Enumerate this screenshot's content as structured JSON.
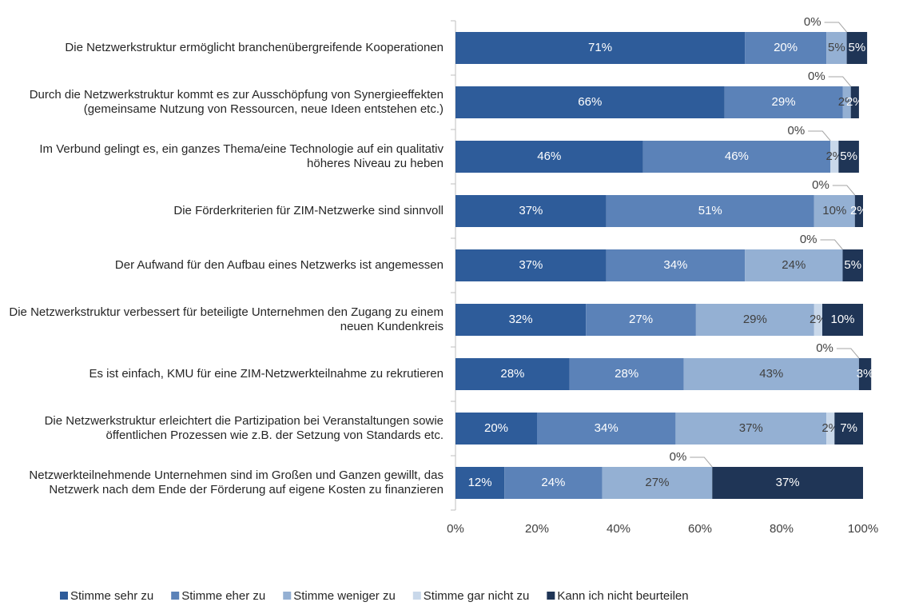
{
  "chart_data": {
    "type": "stacked-bar-horizontal",
    "categories": [
      "Die Netzwerkstruktur ermöglicht branchenübergreifende Kooperationen",
      "Durch die Netzwerkstruktur kommt es zur Ausschöpfung von Synergieeffekten (gemeinsame Nutzung von Ressourcen, neue Ideen entstehen etc.)",
      "Im Verbund gelingt es, ein ganzes Thema/eine Technologie auf ein qualitativ höheres Niveau zu heben",
      "Die Förderkriterien für ZIM-Netzwerke sind sinnvoll",
      "Der Aufwand für den Aufbau eines Netzwerks ist angemessen",
      "Die Netzwerkstruktur verbessert für beteiligte Unternehmen den Zugang zu einem neuen Kundenkreis",
      "Es ist einfach, KMU für eine ZIM-Netzwerkteilnahme zu rekrutieren",
      "Die Netzwerkstruktur erleichtert die Partizipation bei Veranstaltungen sowie öffentlichen Prozessen wie z.B. der Setzung von Standards etc.",
      "Netzwerkteilnehmende Unternehmen sind im Großen und Ganzen gewillt, das Netzwerk nach dem Ende der Förderung auf eigene Kosten zu finanzieren"
    ],
    "series": [
      {
        "name": "Stimme sehr zu",
        "color": "#2e5c9a",
        "values": [
          71,
          66,
          46,
          37,
          37,
          32,
          28,
          20,
          12
        ],
        "value_labels": [
          "71%",
          "66%",
          "46%",
          "37%",
          "37%",
          "32%",
          "28%",
          "20%",
          "12%"
        ]
      },
      {
        "name": "Stimme eher zu",
        "color": "#5b82b8",
        "values": [
          20,
          29,
          46,
          51,
          34,
          27,
          28,
          34,
          24
        ],
        "value_labels": [
          "20%",
          "29%",
          "46%",
          "51%",
          "34%",
          "27%",
          "28%",
          "34%",
          "24%"
        ]
      },
      {
        "name": "Stimme weniger zu",
        "color": "#94b0d3",
        "values": [
          5,
          2,
          0,
          10,
          24,
          29,
          43,
          37,
          27
        ],
        "value_labels": [
          "5%",
          "2%",
          "0%",
          "10%",
          "24%",
          "29%",
          "43%",
          "37%",
          "27%"
        ]
      },
      {
        "name": "Stimme gar nicht zu",
        "color": "#c9d8ea",
        "values": [
          0,
          0,
          2,
          0,
          0,
          2,
          0,
          2,
          0
        ],
        "value_labels": [
          "0%",
          "0%",
          "2%",
          "0%",
          "0%",
          "2%",
          "0%",
          "2%",
          "0%"
        ]
      },
      {
        "name": "Kann ich nicht beurteilen",
        "color": "#1f3556",
        "values": [
          5,
          2,
          5,
          2,
          5,
          10,
          3,
          7,
          37
        ],
        "value_labels": [
          "5%",
          "2%",
          "5%",
          "2%",
          "5%",
          "10%",
          "3%",
          "7%",
          "37%"
        ]
      }
    ],
    "xlim": [
      0,
      100
    ],
    "xticks": [
      {
        "value": 0,
        "label": "0%"
      },
      {
        "value": 20,
        "label": "20%"
      },
      {
        "value": 40,
        "label": "40%"
      },
      {
        "value": 60,
        "label": "60%"
      },
      {
        "value": 80,
        "label": "80%"
      },
      {
        "value": 100,
        "label": "100%"
      }
    ],
    "legend": "bottom"
  }
}
